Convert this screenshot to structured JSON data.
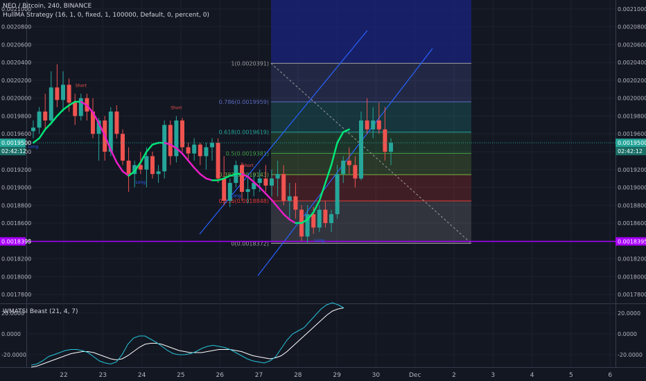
{
  "legend": {
    "symbol_line": "NEO / Bitcoin, 240, BINANCE",
    "strategy_line": "HullMA Strategy (16, 1, 0, fixed, 1, 100000, Default, 0, percent, 0)",
    "indicator_line": "WMATSI Beast (21, 4, 7)"
  },
  "colors": {
    "background": "#131722",
    "up_candle": "#26a69a",
    "down_candle": "#ef5350",
    "hull_up": "#00e676",
    "hull_down": "#e91ec8",
    "channel": "#2962ff",
    "price_line": "#aa00ff",
    "current_price_label": "#26a69a",
    "tsi_line": "#26c6da",
    "tsi_signal": "#ffffff"
  },
  "price_axis": {
    "ticks": [
      "0.0021000",
      "0.0020800",
      "0.0020600",
      "0.0020400",
      "0.0020200",
      "0.0020000",
      "0.0019800",
      "0.0019600",
      "0.0019400",
      "0.0019200",
      "0.0019000",
      "0.0018800",
      "0.0018600",
      "0.0018400",
      "0.0018200",
      "0.0018000",
      "0.0017800"
    ],
    "current_price": "0.0019500",
    "countdown": "02:42:12",
    "level_price": "0.0018395"
  },
  "indicator_axis": {
    "ticks": [
      "20.0000",
      "0.0000",
      "-20.0000"
    ]
  },
  "time_axis": {
    "ticks": [
      "22",
      "23",
      "24",
      "25",
      "26",
      "27",
      "28",
      "29",
      "30",
      "Dec",
      "2",
      "3",
      "4",
      "5",
      "6"
    ]
  },
  "fib_levels": [
    {
      "label": "1(0.0020391)",
      "ratio": 1,
      "fill": "#9e9e9e"
    },
    {
      "label": "0.786(0.0019959)",
      "ratio": 0.786,
      "fill": "#5c6bc0"
    },
    {
      "label": "0.618(0.0019619)",
      "ratio": 0.618,
      "fill": "#26a69a"
    },
    {
      "label": "0.5(0.0019381)",
      "ratio": 0.5,
      "fill": "#43a047"
    },
    {
      "label": "0.382(0.0019143)",
      "ratio": 0.382,
      "fill": "#7cb342"
    },
    {
      "label": "0.236(0.0018848)",
      "ratio": 0.236,
      "fill": "#e53935"
    },
    {
      "label": "0(0.0018372)",
      "ratio": 0,
      "fill": "#9e9e9e"
    }
  ],
  "signals": [
    {
      "label": "Short",
      "side": "short"
    },
    {
      "label": "Long",
      "side": "long"
    }
  ],
  "chart_data": [
    {
      "type": "candlestick",
      "title": "NEO / Bitcoin, 240, BINANCE",
      "x_ticks": [
        "22",
        "23",
        "24",
        "25",
        "26",
        "27",
        "28",
        "29",
        "30",
        "Dec",
        "2",
        "3",
        "4",
        "5",
        "6"
      ],
      "ylim": [
        0.00177,
        0.00211
      ],
      "candles": [
        {
          "o": 0.001963,
          "h": 0.001975,
          "l": 0.001955,
          "c": 0.001967
        },
        {
          "o": 0.001967,
          "h": 0.00199,
          "l": 0.00196,
          "c": 0.001985
        },
        {
          "o": 0.001985,
          "h": 0.002005,
          "l": 0.001965,
          "c": 0.001975
        },
        {
          "o": 0.001975,
          "h": 0.00203,
          "l": 0.00197,
          "c": 0.002012
        },
        {
          "o": 0.002012,
          "h": 0.002038,
          "l": 0.00199,
          "c": 0.001998
        },
        {
          "o": 0.001998,
          "h": 0.00203,
          "l": 0.001985,
          "c": 0.002015
        },
        {
          "o": 0.002015,
          "h": 0.002022,
          "l": 0.001985,
          "c": 0.001995
        },
        {
          "o": 0.001995,
          "h": 0.002005,
          "l": 0.00197,
          "c": 0.00198
        },
        {
          "o": 0.00198,
          "h": 0.002005,
          "l": 0.001975,
          "c": 0.002
        },
        {
          "o": 0.002,
          "h": 0.002005,
          "l": 0.001975,
          "c": 0.001985
        },
        {
          "o": 0.001985,
          "h": 0.002,
          "l": 0.001955,
          "c": 0.00196
        },
        {
          "o": 0.00196,
          "h": 0.001978,
          "l": 0.00193,
          "c": 0.001975
        },
        {
          "o": 0.001975,
          "h": 0.00198,
          "l": 0.00193,
          "c": 0.00194
        },
        {
          "o": 0.00194,
          "h": 0.00199,
          "l": 0.001935,
          "c": 0.001985
        },
        {
          "o": 0.001985,
          "h": 0.001992,
          "l": 0.001955,
          "c": 0.00196
        },
        {
          "o": 0.00196,
          "h": 0.001965,
          "l": 0.001925,
          "c": 0.00193
        },
        {
          "o": 0.00193,
          "h": 0.001945,
          "l": 0.001895,
          "c": 0.001915
        },
        {
          "o": 0.001915,
          "h": 0.00193,
          "l": 0.0019,
          "c": 0.001925
        },
        {
          "o": 0.001925,
          "h": 0.00194,
          "l": 0.001915,
          "c": 0.00192
        },
        {
          "o": 0.00192,
          "h": 0.001945,
          "l": 0.0019,
          "c": 0.001935
        },
        {
          "o": 0.001935,
          "h": 0.00194,
          "l": 0.00191,
          "c": 0.001915
        },
        {
          "o": 0.001915,
          "h": 0.001925,
          "l": 0.001905,
          "c": 0.001918
        },
        {
          "o": 0.001918,
          "h": 0.001975,
          "l": 0.00191,
          "c": 0.00197
        },
        {
          "o": 0.00197,
          "h": 0.001975,
          "l": 0.001925,
          "c": 0.001935
        },
        {
          "o": 0.001935,
          "h": 0.00198,
          "l": 0.001928,
          "c": 0.001975
        },
        {
          "o": 0.001975,
          "h": 0.001978,
          "l": 0.00194,
          "c": 0.001945
        },
        {
          "o": 0.001945,
          "h": 0.00195,
          "l": 0.00193,
          "c": 0.001938
        },
        {
          "o": 0.001938,
          "h": 0.001955,
          "l": 0.00193,
          "c": 0.001948
        },
        {
          "o": 0.001948,
          "h": 0.00195,
          "l": 0.001925,
          "c": 0.001935
        },
        {
          "o": 0.001935,
          "h": 0.00195,
          "l": 0.00192,
          "c": 0.001945
        },
        {
          "o": 0.001945,
          "h": 0.001955,
          "l": 0.00193,
          "c": 0.00195
        },
        {
          "o": 0.00195,
          "h": 0.001955,
          "l": 0.001905,
          "c": 0.00191
        },
        {
          "o": 0.00191,
          "h": 0.001935,
          "l": 0.00188,
          "c": 0.001885
        },
        {
          "o": 0.001885,
          "h": 0.00191,
          "l": 0.001878,
          "c": 0.001905
        },
        {
          "o": 0.001905,
          "h": 0.00193,
          "l": 0.0019,
          "c": 0.001925
        },
        {
          "o": 0.001925,
          "h": 0.001928,
          "l": 0.001885,
          "c": 0.001895
        },
        {
          "o": 0.001895,
          "h": 0.001915,
          "l": 0.001882,
          "c": 0.001898
        },
        {
          "o": 0.001898,
          "h": 0.001915,
          "l": 0.00189,
          "c": 0.001905
        },
        {
          "o": 0.001905,
          "h": 0.00192,
          "l": 0.001895,
          "c": 0.00191
        },
        {
          "o": 0.00191,
          "h": 0.001925,
          "l": 0.001895,
          "c": 0.001902
        },
        {
          "o": 0.001902,
          "h": 0.00192,
          "l": 0.00189,
          "c": 0.00191
        },
        {
          "o": 0.00191,
          "h": 0.00193,
          "l": 0.00189,
          "c": 0.001915
        },
        {
          "o": 0.001915,
          "h": 0.001925,
          "l": 0.00188,
          "c": 0.001885
        },
        {
          "o": 0.001885,
          "h": 0.001905,
          "l": 0.001865,
          "c": 0.00189
        },
        {
          "o": 0.00189,
          "h": 0.001905,
          "l": 0.001865,
          "c": 0.001875
        },
        {
          "o": 0.001875,
          "h": 0.00188,
          "l": 0.00184,
          "c": 0.001845
        },
        {
          "o": 0.001845,
          "h": 0.00188,
          "l": 0.001838,
          "c": 0.00187
        },
        {
          "o": 0.00187,
          "h": 0.001878,
          "l": 0.001848,
          "c": 0.001855
        },
        {
          "o": 0.001855,
          "h": 0.00188,
          "l": 0.00185,
          "c": 0.001875
        },
        {
          "o": 0.001875,
          "h": 0.001885,
          "l": 0.001855,
          "c": 0.00186
        },
        {
          "o": 0.00186,
          "h": 0.001875,
          "l": 0.00185,
          "c": 0.00187
        },
        {
          "o": 0.00187,
          "h": 0.001925,
          "l": 0.001865,
          "c": 0.001915
        },
        {
          "o": 0.001915,
          "h": 0.001935,
          "l": 0.001905,
          "c": 0.00193
        },
        {
          "o": 0.00193,
          "h": 0.001945,
          "l": 0.001915,
          "c": 0.001925
        },
        {
          "o": 0.001925,
          "h": 0.001935,
          "l": 0.0019,
          "c": 0.00191
        },
        {
          "o": 0.00191,
          "h": 0.001985,
          "l": 0.001908,
          "c": 0.001975
        },
        {
          "o": 0.001975,
          "h": 0.002,
          "l": 0.00196,
          "c": 0.001965
        },
        {
          "o": 0.001965,
          "h": 0.00199,
          "l": 0.001955,
          "c": 0.001975
        },
        {
          "o": 0.001975,
          "h": 0.001995,
          "l": 0.00196,
          "c": 0.001965
        },
        {
          "o": 0.001965,
          "h": 0.00199,
          "l": 0.00193,
          "c": 0.00194
        },
        {
          "o": 0.00194,
          "h": 0.001955,
          "l": 0.001925,
          "c": 0.00195
        }
      ],
      "hull_ma": [
        0.00195,
        0.001955,
        0.001965,
        0.001972,
        0.00198,
        0.001987,
        0.001992,
        0.001996,
        0.001996,
        0.001992,
        0.001984,
        0.001972,
        0.001958,
        0.001942,
        0.001928,
        0.001918,
        0.001913,
        0.001918,
        0.001928,
        0.00194,
        0.001948,
        0.00195,
        0.00195,
        0.001948,
        0.001944,
        0.001938,
        0.00193,
        0.001922,
        0.001915,
        0.00191,
        0.001908,
        0.001908,
        0.00191,
        0.001913,
        0.001915,
        0.001915,
        0.001912,
        0.001906,
        0.0019,
        0.001893,
        0.001886,
        0.001878,
        0.00187,
        0.001864,
        0.00186,
        0.00186,
        0.001864,
        0.001872,
        0.001885,
        0.001905,
        0.001925,
        0.00195,
        0.001962,
        0.001965
      ],
      "current_price": 0.00195,
      "level": 0.0018395
    },
    {
      "type": "line",
      "title": "WMATSI Beast (21, 4, 7)",
      "ylim": [
        -32,
        28
      ],
      "series": [
        {
          "values": [
            -30,
            -29,
            -26,
            -22,
            -20,
            -18,
            -16,
            -15,
            -15,
            -16,
            -18,
            -22,
            -26,
            -28,
            -29,
            -27,
            -20,
            -10,
            -4,
            -2,
            -2,
            -5,
            -8,
            -12,
            -16,
            -19,
            -20,
            -20,
            -19,
            -17,
            -14,
            -12,
            -11,
            -12,
            -13,
            -15,
            -18,
            -21,
            -24,
            -26,
            -27,
            -28,
            -26,
            -22,
            -14,
            -6,
            0,
            3,
            6,
            12,
            18,
            24,
            28,
            30,
            28,
            25
          ]
        },
        {
          "values": [
            -32,
            -31,
            -29,
            -27,
            -25,
            -23,
            -21,
            -19,
            -18,
            -17,
            -17,
            -18,
            -20,
            -22,
            -24,
            -25,
            -24,
            -21,
            -17,
            -13,
            -10,
            -9,
            -9,
            -10,
            -12,
            -14,
            -16,
            -17,
            -18,
            -18,
            -18,
            -17,
            -16,
            -15,
            -15,
            -15,
            -16,
            -17,
            -19,
            -21,
            -22,
            -23,
            -24,
            -23,
            -21,
            -17,
            -12,
            -7,
            -2,
            3,
            8,
            13,
            18,
            22,
            24,
            25
          ]
        }
      ]
    }
  ]
}
